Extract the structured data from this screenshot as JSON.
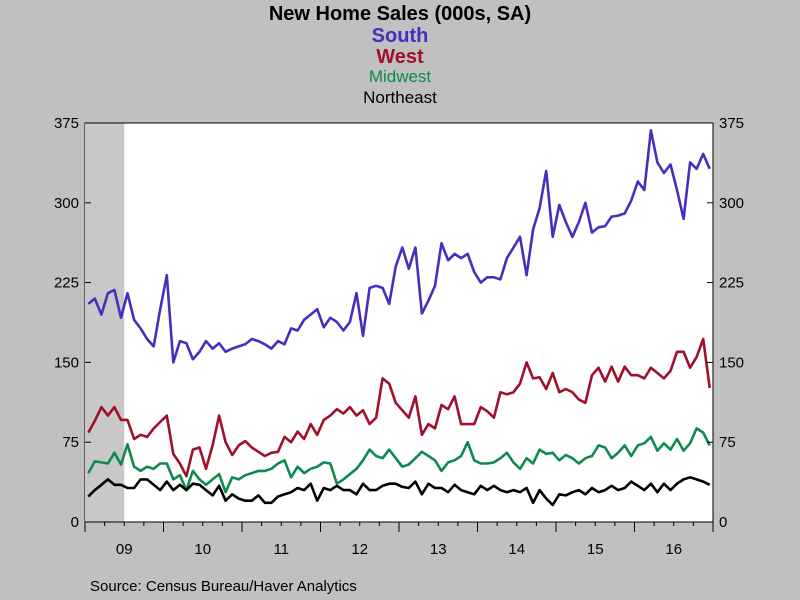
{
  "chart_data": {
    "type": "line",
    "title": "New Home Sales (000s, SA)",
    "source": "Source:  Census Bureau/Haver Analytics",
    "ylim": [
      0,
      375
    ],
    "yticks": [
      0,
      75,
      150,
      225,
      300,
      375
    ],
    "ytick_labels": [
      "0",
      "75",
      "150",
      "225",
      "300",
      "375"
    ],
    "x_start": 2009,
    "x_end": 2017.0,
    "xtick_labels": [
      {
        "label": "09",
        "x": 2009.5
      },
      {
        "label": "10",
        "x": 2010.5
      },
      {
        "label": "11",
        "x": 2011.5
      },
      {
        "label": "12",
        "x": 2012.5
      },
      {
        "label": "13",
        "x": 2013.5
      },
      {
        "label": "14",
        "x": 2014.5
      },
      {
        "label": "15",
        "x": 2015.5
      },
      {
        "label": "16",
        "x": 2016.5
      }
    ],
    "shaded_region": {
      "start": 2009.0,
      "end": 2009.5
    },
    "grid": false,
    "series": [
      {
        "name": "South",
        "color": "#4b2cbf",
        "values": [
          205,
          210,
          195,
          215,
          218,
          192,
          215,
          190,
          182,
          172,
          165,
          200,
          232,
          150,
          170,
          168,
          153,
          160,
          170,
          163,
          168,
          160,
          163,
          165,
          167,
          172,
          170,
          167,
          163,
          170,
          167,
          182,
          180,
          190,
          195,
          200,
          183,
          192,
          188,
          180,
          188,
          215,
          175,
          220,
          222,
          220,
          205,
          240,
          258,
          238,
          258,
          196,
          208,
          222,
          262,
          246,
          252,
          248,
          252,
          235,
          225,
          230,
          230,
          228,
          248,
          258,
          268,
          232,
          275,
          295,
          330,
          268,
          298,
          282,
          268,
          282,
          300,
          272,
          277,
          278,
          287,
          288,
          290,
          302,
          320,
          312,
          368,
          338,
          328,
          336,
          312,
          285,
          338,
          332,
          346,
          332
        ]
      },
      {
        "name": "West",
        "color": "#a0102a",
        "values": [
          84,
          95,
          108,
          100,
          108,
          96,
          96,
          78,
          82,
          80,
          88,
          94,
          100,
          64,
          55,
          43,
          68,
          70,
          50,
          72,
          100,
          75,
          63,
          72,
          76,
          70,
          66,
          62,
          65,
          66,
          80,
          75,
          85,
          78,
          92,
          82,
          96,
          100,
          106,
          102,
          108,
          100,
          105,
          92,
          98,
          135,
          130,
          112,
          105,
          98,
          118,
          82,
          92,
          88,
          110,
          106,
          118,
          92,
          92,
          92,
          108,
          104,
          98,
          122,
          120,
          122,
          130,
          150,
          135,
          136,
          125,
          140,
          122,
          125,
          122,
          115,
          112,
          138,
          145,
          132,
          146,
          132,
          146,
          138,
          138,
          135,
          145,
          140,
          135,
          142,
          160,
          160,
          145,
          155,
          172,
          126
        ]
      },
      {
        "name": "Midwest",
        "color": "#0e8a4f",
        "values": [
          46,
          57,
          56,
          55,
          65,
          54,
          73,
          52,
          48,
          52,
          50,
          55,
          55,
          40,
          44,
          30,
          48,
          40,
          35,
          40,
          45,
          28,
          42,
          40,
          44,
          46,
          48,
          48,
          50,
          55,
          58,
          42,
          52,
          46,
          50,
          52,
          56,
          55,
          36,
          40,
          45,
          50,
          58,
          68,
          62,
          60,
          68,
          60,
          52,
          54,
          60,
          66,
          62,
          58,
          48,
          56,
          58,
          62,
          75,
          58,
          55,
          55,
          56,
          60,
          65,
          56,
          50,
          60,
          55,
          68,
          64,
          65,
          58,
          63,
          60,
          55,
          60,
          62,
          72,
          70,
          60,
          65,
          72,
          62,
          72,
          74,
          80,
          67,
          74,
          68,
          78,
          67,
          74,
          88,
          84,
          72
        ]
      },
      {
        "name": "Northeast",
        "color": "#000000",
        "values": [
          24,
          30,
          35,
          40,
          35,
          35,
          32,
          32,
          40,
          40,
          35,
          30,
          38,
          30,
          35,
          30,
          36,
          35,
          30,
          25,
          34,
          20,
          26,
          22,
          20,
          20,
          25,
          18,
          18,
          24,
          26,
          28,
          32,
          30,
          36,
          20,
          32,
          30,
          34,
          30,
          30,
          26,
          36,
          30,
          30,
          34,
          36,
          36,
          33,
          32,
          38,
          26,
          36,
          32,
          32,
          28,
          35,
          30,
          28,
          26,
          34,
          30,
          34,
          30,
          28,
          30,
          28,
          32,
          18,
          30,
          22,
          16,
          26,
          25,
          28,
          30,
          26,
          32,
          28,
          30,
          34,
          30,
          32,
          38,
          34,
          30,
          36,
          28,
          36,
          30,
          36,
          40,
          42,
          40,
          38,
          35
        ]
      }
    ]
  },
  "legend": {
    "south": "South",
    "west": "West",
    "midwest": "Midwest",
    "northeast": "Northeast"
  }
}
